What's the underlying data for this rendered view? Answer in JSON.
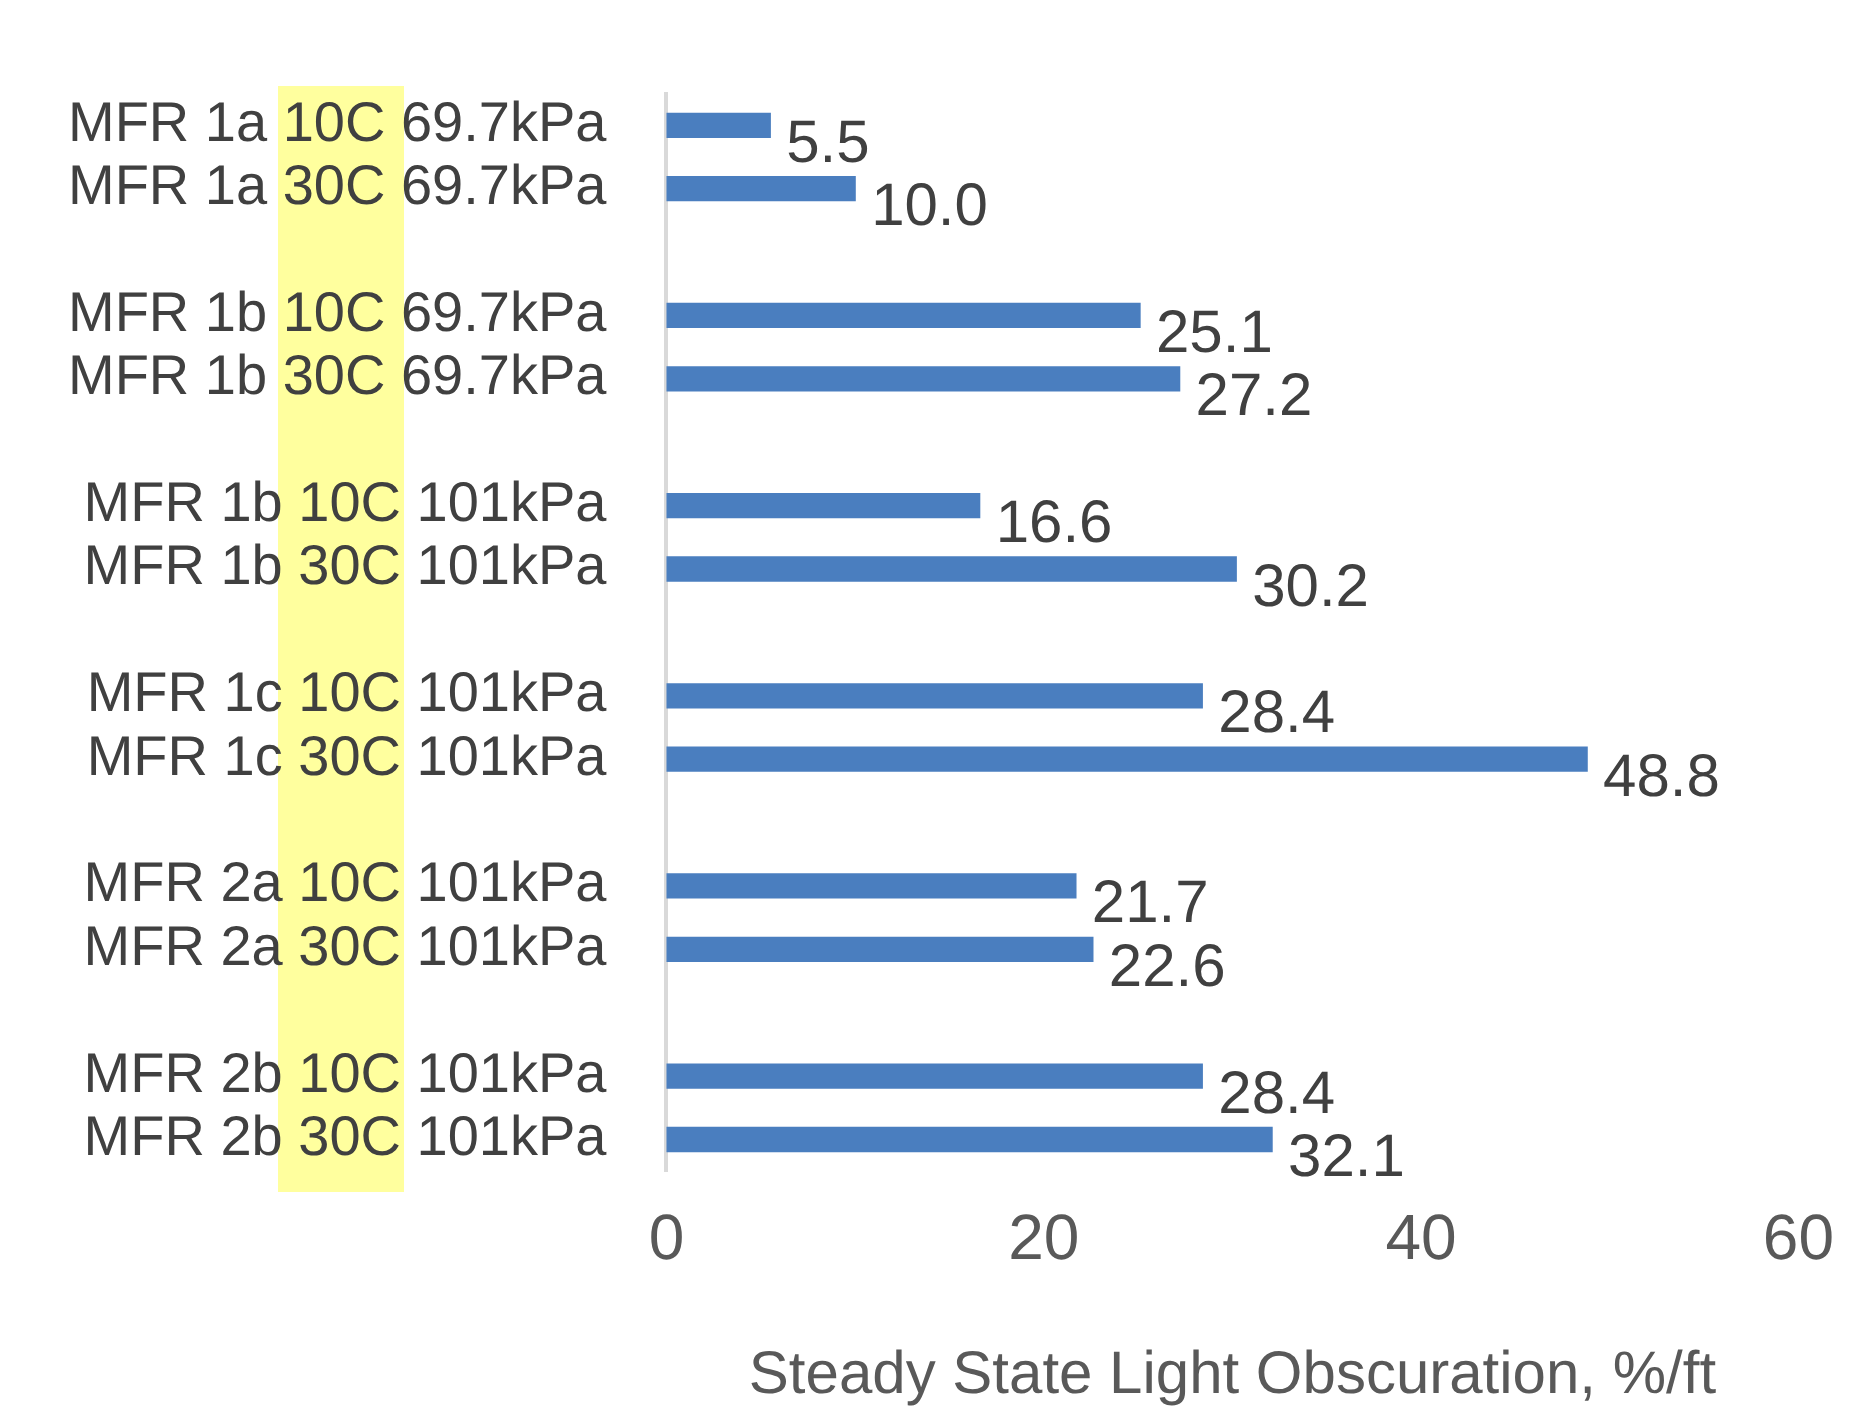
{
  "chart_data": {
    "type": "bar",
    "orientation": "horizontal",
    "xlabel": "Steady State Light Obscuration, %/ft",
    "categories": [
      "MFR 1a 10C 69.7kPa",
      "MFR 1a 30C 69.7kPa",
      null,
      "MFR 1b 10C 69.7kPa",
      "MFR 1b 30C 69.7kPa",
      null,
      "MFR 1b 10C 101kPa",
      "MFR 1b 30C 101kPa",
      null,
      "MFR 1c 10C 101kPa",
      "MFR 1c 30C 101kPa",
      null,
      "MFR 2a 10C 101kPa",
      "MFR 2a 30C 101kPa",
      null,
      "MFR 2b 10C 101kPa",
      "MFR 2b 30C 101kPa"
    ],
    "values": [
      5.5,
      10,
      null,
      25.1,
      27.2,
      null,
      16.6,
      30.2,
      null,
      28.4,
      48.8,
      null,
      21.7,
      22.6,
      null,
      28.4,
      32.1
    ],
    "value_labels": [
      "5.5",
      "10.0",
      null,
      "25.1",
      "27.2",
      null,
      "16.6",
      "30.2",
      null,
      "28.4",
      "48.8",
      null,
      "21.7",
      "22.6",
      null,
      "28.4",
      "32.1"
    ],
    "color": "#4a7ebf",
    "xlim": [
      0,
      60
    ],
    "xticks": [
      0,
      20,
      40,
      60
    ],
    "grid": false,
    "legend": false
  }
}
